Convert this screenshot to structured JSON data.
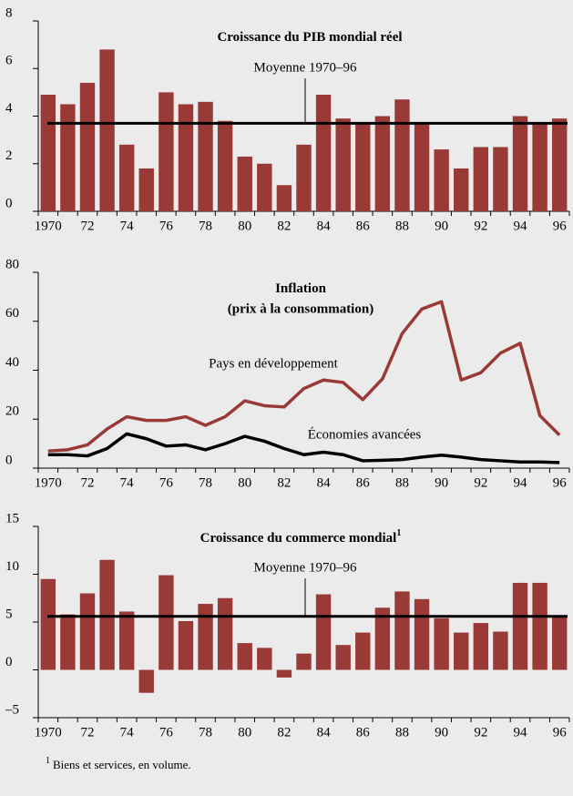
{
  "charts": [
    {
      "type": "bar",
      "title": "Croissance du PIB mondial réel",
      "mean": 3.7,
      "mean_label": "Moyenne 1970–96",
      "color": "#9a3a36",
      "categories": [
        "1970",
        null,
        "72",
        null,
        "74",
        null,
        "76",
        null,
        "78",
        null,
        "80",
        null,
        "82",
        null,
        "84",
        null,
        "86",
        null,
        "88",
        null,
        "90",
        null,
        "92",
        null,
        "94",
        null,
        "96"
      ],
      "values": [
        4.9,
        4.5,
        5.4,
        6.8,
        2.8,
        1.8,
        5.0,
        4.5,
        4.6,
        3.8,
        2.3,
        2.0,
        1.1,
        2.8,
        4.9,
        3.9,
        3.7,
        4.0,
        4.7,
        3.7,
        2.6,
        1.8,
        2.7,
        2.7,
        4.0,
        3.7,
        3.9
      ],
      "ylim": [
        0,
        8
      ],
      "yticks": [
        0,
        2,
        4,
        6,
        8
      ]
    },
    {
      "type": "line",
      "title": "Inflation",
      "subtitle": "(prix à la consommation)",
      "categories": [
        "1970",
        null,
        "72",
        null,
        "74",
        null,
        "76",
        null,
        "78",
        null,
        "80",
        null,
        "82",
        null,
        "84",
        null,
        "86",
        null,
        "88",
        null,
        "90",
        null,
        "92",
        null,
        "94",
        null,
        "96"
      ],
      "series": [
        {
          "name": "Pays en développement",
          "color": "#9a3a36",
          "values": [
            7,
            7.5,
            9.5,
            16,
            21,
            19.5,
            19.5,
            21,
            17.5,
            21,
            27.5,
            25.5,
            25,
            32.5,
            36,
            35,
            28,
            36.5,
            55,
            65,
            68,
            36,
            39,
            47,
            51,
            21.5,
            13.5
          ]
        },
        {
          "name": "Économies avancées",
          "color": "#000000",
          "values": [
            5.5,
            5.5,
            5,
            8,
            14,
            12,
            9,
            9.5,
            7.5,
            10,
            13,
            11,
            8,
            5.5,
            6.5,
            5.5,
            3,
            3.2,
            3.5,
            4.5,
            5.3,
            4.5,
            3.5,
            3,
            2.5,
            2.5,
            2.3
          ]
        }
      ],
      "ylim": [
        0,
        80
      ],
      "yticks": [
        0,
        20,
        40,
        60,
        80
      ]
    },
    {
      "type": "bar",
      "title": "Croissance du commerce mondial",
      "title_marker": "1",
      "mean": 5.6,
      "mean_label": "Moyenne 1970–96",
      "color": "#9a3a36",
      "categories": [
        "1970",
        null,
        "72",
        null,
        "74",
        null,
        "76",
        null,
        "78",
        null,
        "80",
        null,
        "82",
        null,
        "84",
        null,
        "86",
        null,
        "88",
        null,
        "90",
        null,
        "92",
        null,
        "94",
        null,
        "96"
      ],
      "values": [
        9.5,
        5.8,
        8.0,
        11.5,
        6.1,
        -2.4,
        9.9,
        5.1,
        6.9,
        7.5,
        2.8,
        2.3,
        -0.8,
        1.7,
        7.9,
        2.6,
        3.9,
        6.5,
        8.2,
        7.4,
        5.4,
        3.9,
        4.9,
        4.0,
        9.1,
        9.1,
        5.6
      ],
      "ylim": [
        -5,
        15
      ],
      "yticks": [
        {
          "value": -5,
          "label": "–5"
        },
        0,
        5,
        10,
        15
      ]
    }
  ],
  "footnote": {
    "marker": "1",
    "text": "Biens et services, en volume."
  }
}
